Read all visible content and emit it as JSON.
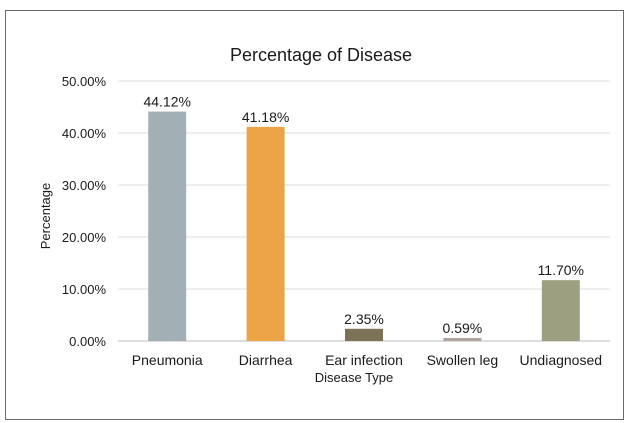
{
  "chart_data": {
    "type": "bar",
    "title": "Percentage of Disease",
    "xlabel": "Disease Type",
    "ylabel": "Percentage",
    "categories": [
      "Pneumonia",
      "Diarrhea",
      "Ear infection",
      "Swollen leg",
      "Undiagnosed"
    ],
    "values": [
      44.12,
      41.18,
      2.35,
      0.59,
      11.7
    ],
    "data_labels": [
      "44.12%",
      "41.18%",
      "2.35%",
      "0.59%",
      "11.70%"
    ],
    "bar_colors": [
      "#a2b0b5",
      "#eda447",
      "#7d7257",
      "#aca39d",
      "#9da080"
    ],
    "ylim": [
      0,
      50
    ],
    "yticks": [
      0,
      10,
      20,
      30,
      40,
      50
    ],
    "ytick_labels": [
      "0.00%",
      "10.00%",
      "20.00%",
      "30.00%",
      "40.00%",
      "50.00%"
    ],
    "grid": true,
    "legend": "none"
  }
}
